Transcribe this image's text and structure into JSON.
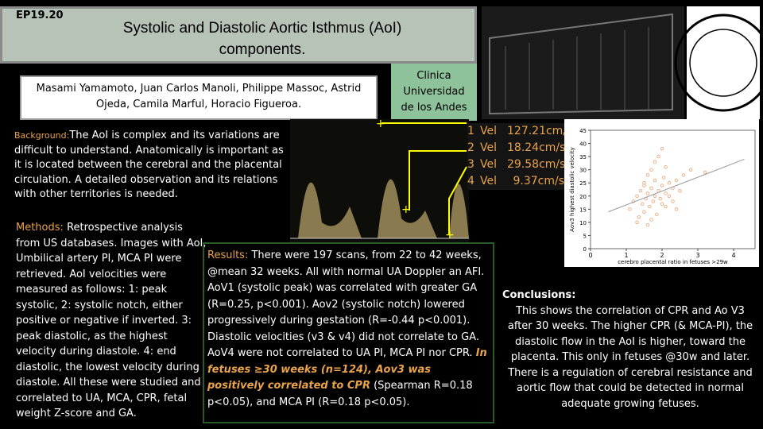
{
  "header": {
    "code": "EP19.20",
    "title_line1": "Systolic and Diastolic Aortic Isthmus (AoI)",
    "title_line2": "components.",
    "authors": "Masami Yamamoto, Juan Carlos Manoli, Philippe Massoc, Astrid Ojeda, Camila Marful, Horacio Figueroa.",
    "institution": "Clinica Universidad de los Andes"
  },
  "background": {
    "label": "Background:",
    "text": "The AoI is complex and its variations are difficult to understand. Anatomically is important as it is located between the cerebral and the placental circulation. A detailed observation and its relations with other territories is needed."
  },
  "velocities": {
    "rows": [
      [
        "1",
        "Vel",
        "127.21cm/s"
      ],
      [
        "2",
        "Vel",
        "18.24cm/s"
      ],
      [
        "3",
        "Vel",
        "29.58cm/s"
      ],
      [
        "4",
        "Vel",
        "9.37cm/s"
      ]
    ]
  },
  "methods": {
    "label": "Methods:",
    "text": "Retrospective analysis from US databases. Images with AoI, Umbilical artery PI, MCA PI were retrieved. AoI velocities were measured as follows: 1: peak systolic, 2: systolic notch, either positive or negative if inverted. 3: peak diastolic, as the highest velocity during diastole. 4: end diastolic, the lowest velocity during diastole. All these were studied and correlated to UA, MCA, CPR, fetal weight Z-score and GA."
  },
  "results": {
    "label": "Results:",
    "text": "There were 197 scans, from 22 to 42 weeks, @mean 32 weeks. All with normal UA Doppler an AFI. AoV1 (systolic peak) was correlated with greater GA (R=0.25, p<0.001). Aov2 (systolic notch) lowered progressively during gestation (R=-0.44 p<0.001). Diastolic velocities (v3 & v4) did not correlate to GA. AoV4 were not correlated to UA PI, MCA PI nor CPR.",
    "emphasis": "In fetuses ≥30 weeks (n=124), Aov3 was positively correlated to CPR",
    "text_end": "(Spearman R=0.18 p<0.05), and MCA PI (R=0.18 p<0.05)."
  },
  "conclusions": {
    "label": "Conclusions:",
    "text": "This shows the correlation of CPR and Ao V3 after 30 weeks. The higher CPR (& MCA-PI), the diastolic flow in the AoI is higher, toward the placenta. This only in fetuses @30w and later. There is a regulation of cerebral resistance and aortic flow that could be detected in normal adequate growing fetuses."
  },
  "chart_data": {
    "type": "scatter",
    "x_label": "cerebro placental ratio in fetuses >29w",
    "y_label": "Aov3 highest diastolic velocity",
    "color": "#e8a070",
    "x": [
      1.1,
      1.2,
      1.3,
      1.35,
      1.4,
      1.45,
      1.5,
      1.5,
      1.55,
      1.6,
      1.6,
      1.65,
      1.7,
      1.7,
      1.75,
      1.8,
      1.8,
      1.85,
      1.9,
      1.9,
      1.95,
      2.0,
      2.0,
      2.05,
      2.1,
      2.1,
      2.2,
      2.2,
      2.3,
      2.3,
      2.4,
      2.5,
      2.6,
      1.3,
      1.6,
      1.8,
      2.0,
      2.4,
      2.8,
      3.2,
      1.5,
      1.7,
      2.1
    ],
    "y": [
      15,
      18,
      20,
      12,
      22,
      17,
      25,
      14,
      19,
      21,
      28,
      16,
      23,
      30,
      18,
      20,
      26,
      13,
      22,
      35,
      19,
      24,
      17,
      27,
      21,
      31,
      20,
      25,
      23,
      18,
      26,
      22,
      28,
      10,
      9,
      33,
      38,
      15,
      30,
      29,
      24,
      11,
      16
    ],
    "fit_x": [
      0.5,
      4.3
    ],
    "fit_y": [
      14,
      34
    ],
    "xlim": [
      0,
      4.6
    ],
    "ylim": [
      0,
      45
    ],
    "xticks": [
      0,
      1,
      2,
      3,
      4
    ],
    "yticks": [
      0,
      5,
      10,
      15,
      20,
      25,
      30,
      35,
      40,
      45
    ]
  }
}
